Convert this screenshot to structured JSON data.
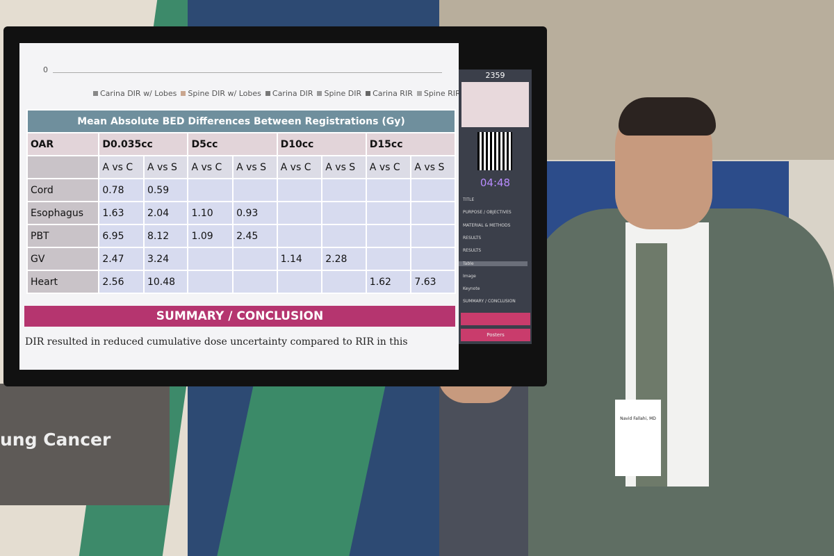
{
  "screen": {
    "axis_zero": "0",
    "legend": [
      "Carina DIR w/ Lobes",
      "Spine DIR w/ Lobes",
      "Carina DIR",
      "Spine DIR",
      "Carina RIR",
      "Spine RIR"
    ],
    "table": {
      "title": "Mean Absolute BED Differences Between Registrations (Gy)",
      "header": [
        "OAR",
        "D0.035cc",
        "D5cc",
        "D10cc",
        "D15cc"
      ],
      "subheader": [
        "A vs C",
        "A vs S",
        "A vs C",
        "A vs S",
        "A vs C",
        "A vs S",
        "A vs C",
        "A vs S"
      ],
      "rows": [
        [
          "Cord",
          "0.78",
          "0.59",
          null,
          null,
          null,
          null,
          null,
          null
        ],
        [
          "Esophagus",
          "1.63",
          "2.04",
          "1.10",
          "0.93",
          null,
          null,
          null,
          null
        ],
        [
          "PBT",
          "6.95",
          "8.12",
          "1.09",
          "2.45",
          null,
          null,
          null,
          null
        ],
        [
          "GV",
          "2.47",
          "3.24",
          null,
          null,
          "1.14",
          "2.28",
          null,
          null
        ],
        [
          "Heart",
          "2.56",
          "10.48",
          null,
          null,
          null,
          null,
          "1.62",
          "7.63"
        ]
      ]
    },
    "summary_title": "SUMMARY / CONCLUSION",
    "summary_text": "DIR resulted in reduced cumulative dose uncertainty compared to RIR in this",
    "sidebar": {
      "number": "2359",
      "timer": "04:48",
      "nav": [
        "TITLE",
        "PURPOSE / OBJECTIVES",
        "MATERIAL & METHODS",
        "RESULTS",
        "RESULTS",
        "Table",
        "Image",
        "Keynote",
        "SUMMARY / CONCLUSION"
      ],
      "back": "Posters"
    }
  },
  "banner": "ung Cancer",
  "badge": "Navid Fallahi, MD"
}
